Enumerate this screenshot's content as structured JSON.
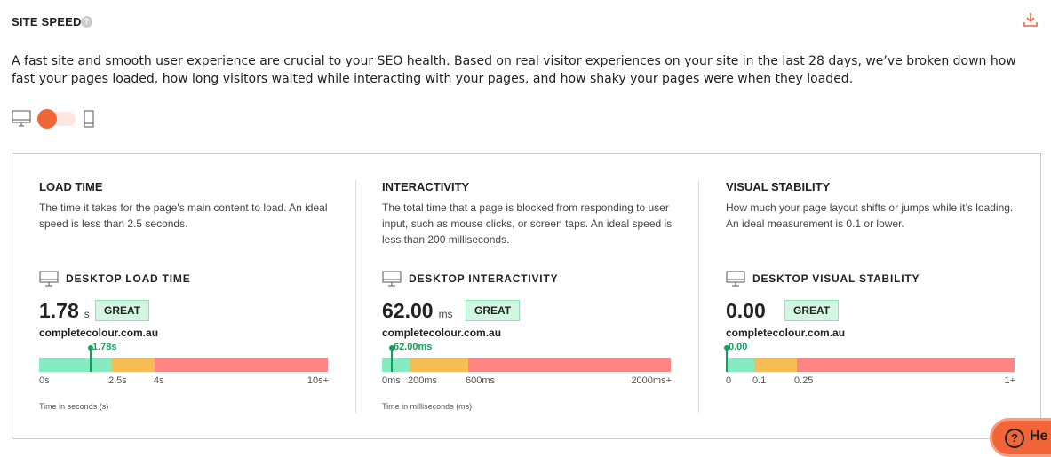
{
  "header": {
    "title": "SITE SPEED",
    "help": "?"
  },
  "intro": "A fast site and smooth user experience are crucial to your SEO health. Based on real visitor experiences on your site in the last 28 days, we’ve broken down how fast your pages loaded, how long visitors waited while interacting with your pages, and how shaky your pages were when they loaded.",
  "device_toggle": {
    "selected": "desktop"
  },
  "metrics": [
    {
      "title": "LOAD TIME",
      "desc": "The time it takes for the page's main content to load. An ideal speed is less than 2.5 seconds.",
      "label": "DESKTOP LOAD TIME",
      "value": "1.78",
      "unit": "s",
      "badge": "GREAT",
      "site": "completecolour.com.au",
      "marker": "1.78s",
      "ticks": [
        "0s",
        "2.5s",
        "4s",
        "10s+"
      ],
      "axis": "Time in seconds (s)"
    },
    {
      "title": "INTERACTIVITY",
      "desc": "The total time that a page is blocked from responding to user input, such as mouse clicks, or screen taps. An ideal speed is less than 200 milliseconds.",
      "label": "DESKTOP INTERACTIVITY",
      "value": "62.00",
      "unit": "ms",
      "badge": "GREAT",
      "site": "completecolour.com.au",
      "marker": "62.00ms",
      "ticks": [
        "0ms",
        "200ms",
        "600ms",
        "2000ms+"
      ],
      "axis": "Time in milliseconds (ms)"
    },
    {
      "title": "VISUAL STABILITY",
      "desc": "How much your page layout shifts or jumps while it’s loading. An ideal measurement is 0.1 or lower.",
      "label": "DESKTOP VISUAL STABILITY",
      "value": "0.00",
      "unit": "",
      "badge": "GREAT",
      "site": "completecolour.com.au",
      "marker": "0.00",
      "ticks": [
        "0",
        "0.1",
        "0.25",
        "1+"
      ],
      "axis": ""
    }
  ],
  "help_button": "He"
}
